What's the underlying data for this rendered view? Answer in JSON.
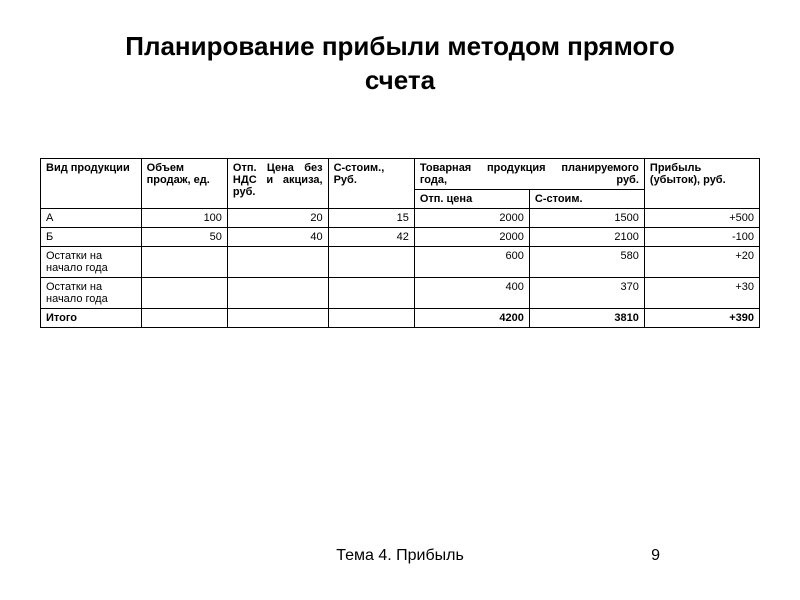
{
  "title": "Планирование прибыли методом прямого счета",
  "table": {
    "headers": {
      "product": "Вид продукции",
      "volume": "Объем продаж, ед.",
      "price": "Отп. Цена без НДС и акциза, руб.",
      "cost": "С-стоим., Руб.",
      "merged": "Товарная продукция планируемого года, руб.",
      "sub1": "Отп. цена",
      "sub2": "С-стоим.",
      "profit": "Прибыль (убыток), руб."
    },
    "rows": [
      {
        "product": "А",
        "volume": "100",
        "price": "20",
        "cost": "15",
        "sub1": "2000",
        "sub2": "1500",
        "profit": "+500"
      },
      {
        "product": "Б",
        "volume": "50",
        "price": "40",
        "cost": "42",
        "sub1": "2000",
        "sub2": "2100",
        "profit": "-100"
      },
      {
        "product": "Остатки на начало года",
        "volume": "",
        "price": "",
        "cost": "",
        "sub1": "600",
        "sub2": "580",
        "profit": "+20"
      },
      {
        "product": "Остатки на начало года",
        "volume": "",
        "price": "",
        "cost": "",
        "sub1": "400",
        "sub2": "370",
        "profit": "+30"
      }
    ],
    "total": {
      "label": "Итого",
      "sub1": "4200",
      "sub2": "3810",
      "profit": "+390"
    }
  },
  "footer": {
    "text": "Тема 4. Прибыль",
    "page": "9"
  }
}
